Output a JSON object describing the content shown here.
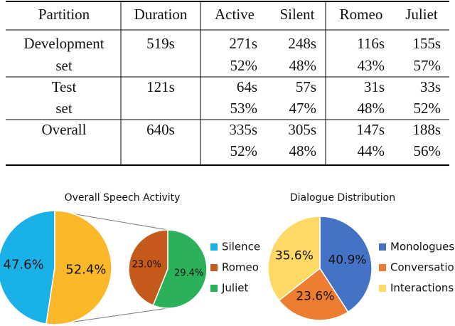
{
  "table": {
    "header": [
      "Partition",
      "Duration",
      "Active",
      "Silent",
      "Romeo",
      "Juliet"
    ],
    "rows": [
      [
        "Development",
        "519s",
        "271s",
        "248s",
        "116s",
        "155s"
      ],
      [
        "set",
        null,
        "52%",
        "48%",
        "43%",
        "57%"
      ],
      [
        "Test",
        "121s",
        "64s",
        "57s",
        "31s",
        "33s"
      ],
      [
        "set",
        null,
        "53%",
        "47%",
        "48%",
        "52%"
      ],
      [
        "Overall",
        "640s",
        "335s",
        "305s",
        "147s",
        "188s"
      ],
      [
        null,
        null,
        "52%",
        "48%",
        "44%",
        "56%"
      ]
    ]
  },
  "chart_data": [
    {
      "type": "pie",
      "title": "Overall Speech Activity",
      "categories": [
        "Silence",
        null
      ],
      "values": [
        47.6,
        52.4
      ],
      "value_labels": [
        "47.6%",
        "52.4%"
      ],
      "colors": [
        "#1ab0e8",
        "#fbb829"
      ],
      "breakout": {
        "categories": [
          "Romeo",
          "Juliet"
        ],
        "values": [
          23.0,
          29.4
        ],
        "value_labels": [
          "23.0%",
          "29.4%"
        ],
        "colors": [
          "#c55a1c",
          "#2bb15a"
        ]
      }
    },
    {
      "type": "pie",
      "title": "Dialogue Distribution",
      "categories": [
        "Monologues",
        "Conversations",
        "Interactions"
      ],
      "values": [
        40.9,
        23.6,
        35.6
      ],
      "value_labels": [
        "40.9%",
        "23.6%",
        "35.6%"
      ],
      "colors": [
        "#4472c4",
        "#ed7d31",
        "#ffd966"
      ]
    }
  ]
}
